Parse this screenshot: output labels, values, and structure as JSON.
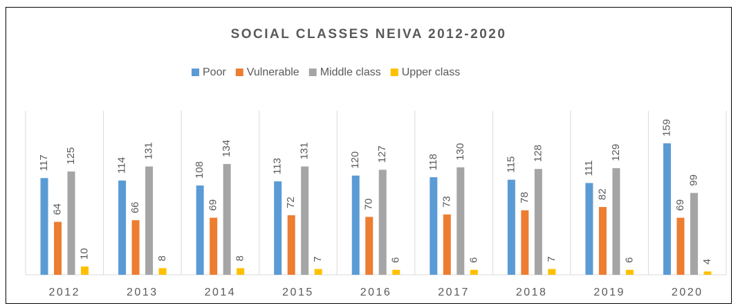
{
  "chart_data": {
    "type": "bar",
    "title": "SOCIAL CLASSES NEIVA 2012-2020",
    "categories": [
      "2012",
      "2013",
      "2014",
      "2015",
      "2016",
      "2017",
      "2018",
      "2019",
      "2020"
    ],
    "series": [
      {
        "name": "Poor",
        "color": "#5B9BD5",
        "values": [
          117,
          114,
          108,
          113,
          120,
          118,
          115,
          111,
          159
        ]
      },
      {
        "name": "Vulnerable",
        "color": "#ED7D31",
        "values": [
          64,
          66,
          69,
          72,
          70,
          73,
          78,
          82,
          69
        ]
      },
      {
        "name": "Middle class",
        "color": "#A5A5A5",
        "values": [
          125,
          131,
          134,
          131,
          127,
          130,
          128,
          129,
          99
        ]
      },
      {
        "name": "Upper class",
        "color": "#FFC000",
        "values": [
          10,
          8,
          8,
          7,
          6,
          6,
          7,
          6,
          4
        ]
      }
    ],
    "ylim": [
      0,
      180
    ],
    "legend": "top"
  }
}
